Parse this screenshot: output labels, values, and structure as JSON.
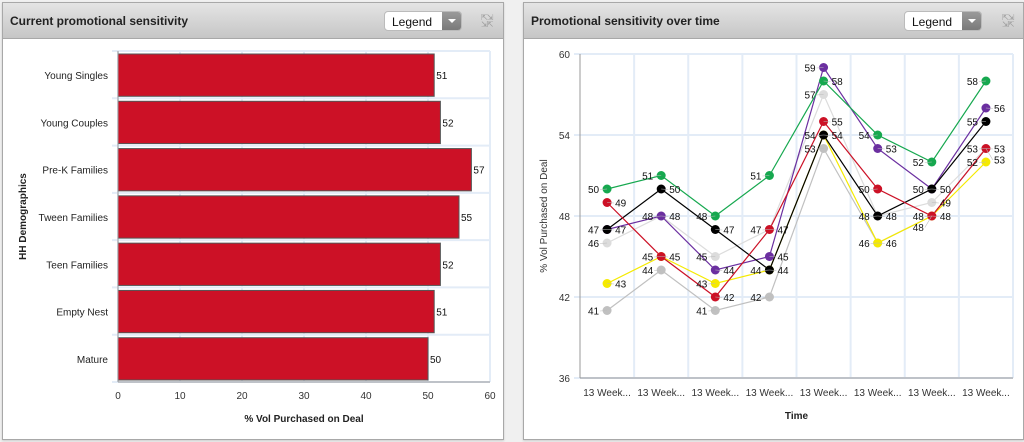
{
  "panels": {
    "left": {
      "title": "Current promotional sensitivity",
      "legend_label": "Legend",
      "expand_icon": "expand-icon"
    },
    "right": {
      "title": "Promotional sensitivity over time",
      "legend_label": "Legend",
      "expand_icon": "expand-icon"
    }
  },
  "chart_data": [
    {
      "type": "bar",
      "orientation": "horizontal",
      "title": "Current promotional sensitivity",
      "categories": [
        "Young Singles",
        "Young Couples",
        "Pre-K Families",
        "Tween Families",
        "Teen Families",
        "Empty Nest",
        "Mature"
      ],
      "values": [
        51,
        52,
        57,
        55,
        52,
        51,
        50
      ],
      "xlabel": "% Vol Purchased on Deal",
      "ylabel": "HH Demographics",
      "xlim": [
        0,
        60
      ],
      "xticks": [
        0,
        10,
        20,
        30,
        40,
        50,
        60
      ],
      "bar_color": "#cc1126",
      "grid": true
    },
    {
      "type": "line",
      "title": "Promotional sensitivity over time",
      "categories": [
        "13 Week...",
        "13 Week...",
        "13 Week...",
        "13 Week...",
        "13 Week...",
        "13 Week...",
        "13 Week...",
        "13 Week..."
      ],
      "xlabel": "Time",
      "ylabel": "% Vol Purchased on Deal",
      "ylim": [
        36,
        60
      ],
      "yticks": [
        36,
        42,
        48,
        54,
        60
      ],
      "grid": true,
      "series": [
        {
          "name": "green",
          "color": "#16a84f",
          "values": [
            50,
            51,
            48,
            51,
            58,
            54,
            52,
            58
          ]
        },
        {
          "name": "red",
          "color": "#cc1126",
          "values": [
            49,
            45,
            42,
            47,
            55,
            50,
            48,
            53
          ]
        },
        {
          "name": "black",
          "color": "#000000",
          "values": [
            47,
            50,
            47,
            44,
            54,
            48,
            50,
            55
          ]
        },
        {
          "name": "purple",
          "color": "#6b2fa0",
          "values": [
            47,
            48,
            44,
            45,
            59,
            53,
            50,
            56
          ]
        },
        {
          "name": "light-gray",
          "color": "#dcdcdc",
          "values": [
            46,
            48,
            45,
            47,
            57,
            48,
            49,
            53
          ]
        },
        {
          "name": "yellow",
          "color": "#f5ea00",
          "values": [
            43,
            45,
            43,
            44,
            54,
            46,
            48,
            52
          ]
        },
        {
          "name": "gray",
          "color": "#c0c0c0",
          "values": [
            41,
            44,
            41,
            42,
            53,
            46,
            48,
            53
          ]
        }
      ]
    }
  ]
}
